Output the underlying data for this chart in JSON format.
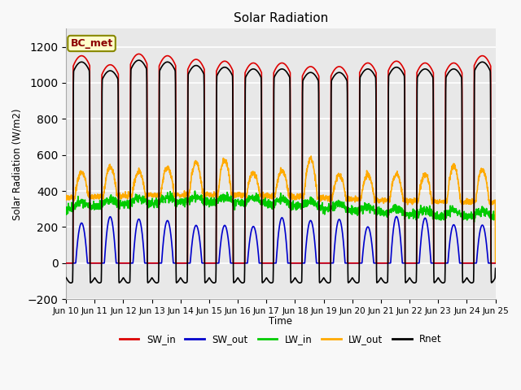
{
  "title": "Solar Radiation",
  "ylabel": "Solar Radiation (W/m2)",
  "xlabel": "Time",
  "ylim": [
    -200,
    1300
  ],
  "yticks": [
    -200,
    0,
    200,
    400,
    600,
    800,
    1000,
    1200
  ],
  "annotation": "BC_met",
  "legend_labels": [
    "SW_in",
    "SW_out",
    "LW_in",
    "LW_out",
    "Rnet"
  ],
  "legend_colors": [
    "#dd0000",
    "#0000cc",
    "#00cc00",
    "#ffaa00",
    "#000000"
  ],
  "background_color": "#e8e8e8",
  "grid_color": "#ffffff",
  "xtick_labels": [
    "Jun 10",
    "Jun 11",
    "Jun 12",
    "Jun 13",
    "Jun 14",
    "Jun 15",
    "Jun 16",
    "Jun 17",
    "Jun 18",
    "Jun 19",
    "Jun 20",
    "Jun 21",
    "Jun 22",
    "Jun 23",
    "Jun 24",
    "Jun 25"
  ],
  "figsize": [
    6.4,
    4.8
  ],
  "dpi": 100
}
